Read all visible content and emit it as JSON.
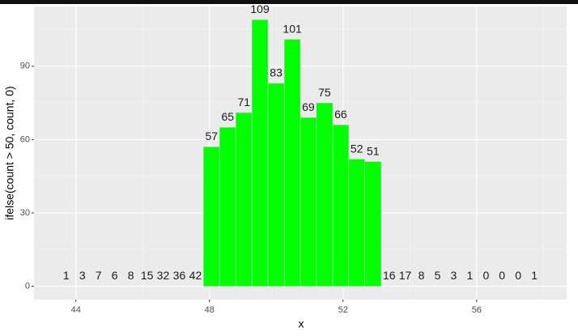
{
  "chart_data": {
    "type": "histogram",
    "x_label": "x",
    "y_label": "ifelse(count > 50, count, 0)",
    "bins": [
      43.47,
      43.95,
      44.44,
      44.92,
      45.4,
      45.89,
      46.37,
      46.85,
      47.34,
      47.82,
      48.3,
      48.79,
      49.27,
      49.75,
      50.24,
      50.72,
      51.2,
      51.69,
      52.17,
      52.65,
      53.14,
      53.62,
      54.1,
      54.59,
      55.07,
      55.55,
      56.04,
      56.52,
      57.0,
      57.49,
      57.97
    ],
    "values": [
      0,
      0,
      0,
      0,
      0,
      0,
      0,
      0,
      0,
      57,
      65,
      71,
      109,
      83,
      101,
      69,
      75,
      66,
      52,
      51,
      0,
      0,
      0,
      0,
      0,
      0,
      0,
      0,
      0,
      0
    ],
    "counts": [
      1,
      3,
      7,
      6,
      8,
      15,
      32,
      36,
      42,
      57,
      65,
      71,
      109,
      83,
      101,
      69,
      75,
      66,
      52,
      51,
      16,
      17,
      8,
      5,
      3,
      1,
      0,
      0,
      0,
      1
    ],
    "color": "#00ff00",
    "edge_color": "#c8c8c8",
    "xlim": [
      42.745,
      58.695
    ],
    "xticks": [
      44,
      48,
      52,
      56
    ],
    "minor_xticks": [
      46,
      50,
      54,
      58
    ],
    "ylim": [
      -5.45,
      114.45
    ],
    "yticks": [
      0,
      30,
      60,
      90
    ],
    "minor_yticks": [
      15,
      45,
      75,
      105
    ],
    "grid": true
  }
}
